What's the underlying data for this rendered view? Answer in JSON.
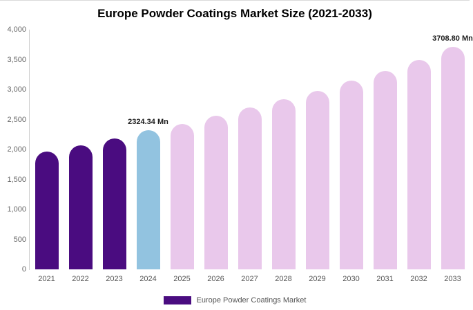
{
  "colors": {
    "historical": "#4a0c80",
    "highlight": "#92c3e0",
    "forecast": "#e9c8eb",
    "axis_line": "#cfcfcf"
  },
  "legend": {
    "label": "Europe Powder Coatings Market",
    "swatch_color": "#4a0c80"
  },
  "chart_data": {
    "type": "bar",
    "title": "Europe Powder Coatings Market Size (2021-2033)",
    "categories": [
      "2021",
      "2022",
      "2023",
      "2024",
      "2025",
      "2026",
      "2027",
      "2028",
      "2029",
      "2030",
      "2031",
      "2032",
      "2033"
    ],
    "values": [
      1970,
      2070,
      2180,
      2324.34,
      2425,
      2560,
      2700,
      2840,
      2980,
      3150,
      3310,
      3490,
      3708.8
    ],
    "roles": [
      "historical",
      "historical",
      "historical",
      "highlight",
      "forecast",
      "forecast",
      "forecast",
      "forecast",
      "forecast",
      "forecast",
      "forecast",
      "forecast",
      "forecast"
    ],
    "ylim": [
      0,
      4000
    ],
    "yticks": [
      "4,000",
      "3,500",
      "3,000",
      "2,500",
      "2,000",
      "1,500",
      "1,000",
      "500",
      "0"
    ],
    "xlabel": "",
    "ylabel": "",
    "grid": false,
    "legend_position": "bottom",
    "annotations": [
      {
        "category": "2024",
        "text": "2324.34 Mn"
      },
      {
        "category": "2033",
        "text": "3708.80 Mn"
      }
    ]
  }
}
